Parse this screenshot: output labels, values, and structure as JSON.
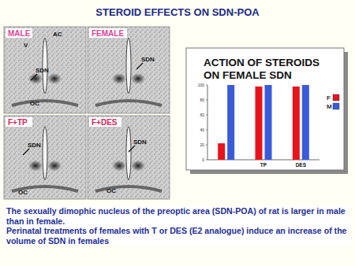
{
  "slide": {
    "title": "STEROID EFFECTS ON SDN-POA",
    "panels": [
      {
        "label": "MALE",
        "marks": [
          "AC",
          "V",
          "SDN",
          "OC"
        ]
      },
      {
        "label": "FEMALE",
        "marks": [
          "SDN"
        ]
      },
      {
        "label": "F+TP",
        "marks": [
          "SDN",
          "OC"
        ]
      },
      {
        "label": "F+DES",
        "marks": [
          "SDN",
          "OC"
        ]
      }
    ],
    "text": [
      "The sexually dimophic nucleus of the preoptic area (SDN-POA) of rat is larger in male than in female.",
      "Perinatal treatments of females with T or DES (E2 analogue) induce an increase of the volume of SDN in females"
    ]
  },
  "chart_data": {
    "type": "bar",
    "title": "ACTION OF STEROIDS ON FEMALE SDN",
    "categories": [
      null,
      "TP",
      "DES"
    ],
    "series": [
      {
        "name": "F",
        "color": "#e8141c",
        "values": [
          22,
          98,
          98
        ]
      },
      {
        "name": "M",
        "color": "#3a5bd9",
        "values": [
          100,
          100,
          100
        ]
      }
    ],
    "ylim": [
      0,
      100
    ],
    "yticks": [
      0,
      20,
      40,
      60,
      80,
      100
    ],
    "legend": "right"
  }
}
